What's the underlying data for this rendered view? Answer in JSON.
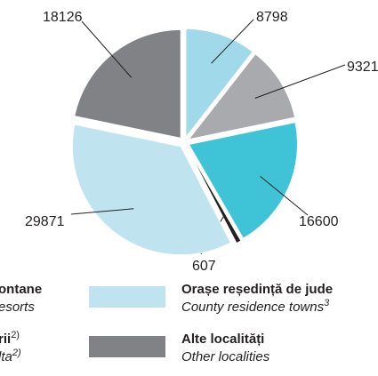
{
  "chart_data": {
    "type": "pie",
    "values": [
      8798,
      9321,
      16600,
      607,
      29871,
      18126
    ],
    "colors": [
      "#9fd9ea",
      "#a8aaad",
      "#3fc3d6",
      "#231f20",
      "#bfe4ef",
      "#808285"
    ],
    "legend": [
      {
        "name": "ontane",
        "note": "esorts"
      },
      {
        "name": "rii",
        "sup": "2)",
        "note": "lta",
        "note_sup": "2)"
      },
      {
        "name": "Orașe reședință de jude",
        "note": "County residence towns",
        "note_sup": "3",
        "color": "#bfe4ef"
      },
      {
        "name": "Alte localități",
        "note": "Other localities",
        "color": "#808285"
      }
    ]
  }
}
